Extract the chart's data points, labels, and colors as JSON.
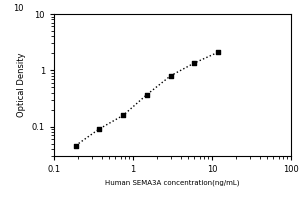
{
  "x": [
    0.188,
    0.375,
    0.75,
    1.5,
    3.0,
    6.0,
    12.0
  ],
  "y": [
    0.046,
    0.091,
    0.158,
    0.37,
    0.8,
    1.35,
    2.1
  ],
  "xlim": [
    0.1,
    100
  ],
  "ylim": [
    0.03,
    10
  ],
  "xlabel": "Human SEMA3A concentration(ng/mL)",
  "ylabel": "Optical Density",
  "marker": "s",
  "marker_color": "black",
  "line_style": ":",
  "line_color": "black",
  "background_color": "#ffffff",
  "xticks": [
    0.1,
    1,
    10,
    100
  ],
  "yticks": [
    0.1,
    1,
    10
  ],
  "xlabel_fontsize": 5.0,
  "ylabel_fontsize": 6.0,
  "tick_fontsize": 6.0
}
